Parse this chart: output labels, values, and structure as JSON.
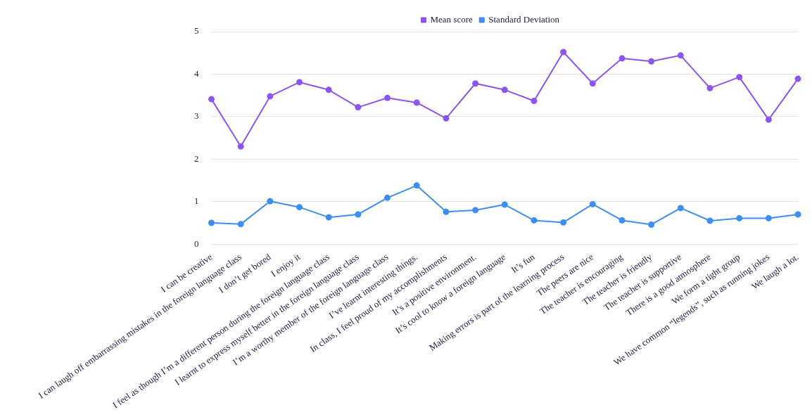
{
  "chart_data": {
    "type": "line",
    "categories": [
      "I can be creative",
      "I can laugh off embarrassing mistakes in the foreign language class",
      "I don’t get bored",
      "I enjoy it",
      "I feel as though I’m a different person during the foreign language class",
      "I learnt to express myself better in the foreign language class",
      "I’m a worthy member of the foreign language class",
      "I’ve learnt interesting things.",
      "In class, I feel proud of my accomplishments",
      "It’s a positive environment.",
      "It’s cool to know a foreign language",
      "It’s fun",
      "Making errors is part of the learning process",
      "The peers are nice",
      "The teacher is encouraging",
      "The teacher is friendly",
      "The teacher is supportive",
      "There is a good atmosphere",
      "We form a tight group",
      "We have common “legends”, such as running jokes",
      "We laugh a lot."
    ],
    "series": [
      {
        "name": "Mean score",
        "color": "#8c55f0",
        "values": [
          3.41,
          2.3,
          3.48,
          3.81,
          3.63,
          3.22,
          3.44,
          3.33,
          2.96,
          3.78,
          3.63,
          3.37,
          4.52,
          3.78,
          4.37,
          4.3,
          4.44,
          3.67,
          3.93,
          2.93,
          3.89
        ]
      },
      {
        "name": "Standard Deviation",
        "color": "#3d8ef2",
        "values": [
          0.5,
          0.47,
          1.01,
          0.87,
          0.63,
          0.7,
          1.09,
          1.38,
          0.76,
          0.8,
          0.93,
          0.56,
          0.51,
          0.94,
          0.56,
          0.46,
          0.85,
          0.55,
          0.61,
          0.61,
          0.7
        ]
      }
    ],
    "ylim": [
      0,
      5
    ],
    "yticks": [
      0,
      1,
      2,
      3,
      4,
      5
    ],
    "grid": "y",
    "legend": "top",
    "marker": "circle",
    "line_style": "solid"
  }
}
